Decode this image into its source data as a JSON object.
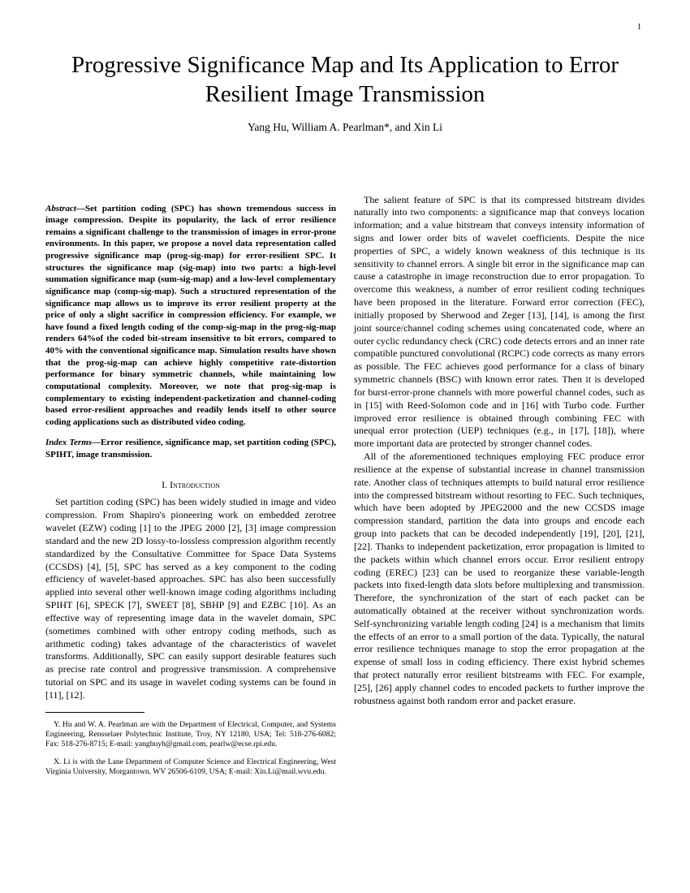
{
  "page_number": "1",
  "title": "Progressive Significance Map and Its Application to Error Resilient Image Transmission",
  "authors": "Yang Hu, William A. Pearlman*, and Xin Li",
  "abstract_lead": "Abstract—",
  "abstract_body": "Set partition coding (SPC) has shown tremendous success in image compression. Despite its popularity, the lack of error resilience remains a significant challenge to the transmission of images in error-prone environments. In this paper, we propose a novel data representation called progressive significance map (prog-sig-map) for error-resilient SPC. It structures the significance map (sig-map) into two parts: a high-level summation significance map (sum-sig-map) and a low-level complementary significance map (comp-sig-map). Such a structured representation of the significance map allows us to improve its error resilient property at the price of only a slight sacrifice in compression efficiency. For example, we have found a fixed length coding of the comp-sig-map in the prog-sig-map renders 64%of the coded bit-stream insensitive to bit errors, compared to 40% with the conventional significance map. Simulation results have shown that the prog-sig-map can achieve highly competitive rate-distortion performance for binary symmetric channels, while maintaining low computational complexity. Moreover, we note that prog-sig-map is complementary to existing independent-packetization and channel-coding based error-resilient approaches and readily lends itself to other source coding applications such as distributed video coding.",
  "index_lead": "Index Terms—",
  "index_body": "Error resilience, significance map, set partition coding (SPC), SPIHT, image transmission.",
  "section1": "I.  Introduction",
  "intro_para": "Set partition coding (SPC) has been widely studied in image and video compression. From Shapiro's pioneering work on embedded zerotree wavelet (EZW) coding [1] to the JPEG 2000 [2], [3] image compression standard and the new 2D lossy-to-lossless compression algorithm recently standardized by the Consultative Committee for Space Data Systems (CCSDS) [4], [5], SPC has served as a key component to the coding efficiency of wavelet-based approaches. SPC has also been successfully applied into several other well-known image coding algorithms including SPIHT [6], SPECK [7], SWEET [8], SBHP [9] and EZBC [10]. As an effective way of representing image data in the wavelet domain, SPC (sometimes combined with other entropy coding methods, such as arithmetic coding) takes advantage of the characteristics of wavelet transforms. Additionally, SPC can easily support desirable features such as precise rate control and progressive transmission. A comprehensive tutorial on SPC and its usage in wavelet coding systems can be found in [11], [12].",
  "footnote1": "Y. Hu and W. A. Pearlman are with the Department of Electrical, Computer, and Systems Engineering, Rensselaer Polytechnic Institute, Troy, NY 12180, USA; Tel: 518-276-6082; Fax: 518-276-8715; E-mail: yanghuyh@gmail.com, pearlw@ecse.rpi.edu.",
  "footnote2": "X. Li is with the Lane Department of Computer Science and Electrical Engineering, West Virginia University, Morgantown, WV 26506-6109, USA; E-mail: Xin.Li@mail.wvu.edu.",
  "col2_para1": "The salient feature of SPC is that its compressed bitstream divides naturally into two components: a significance map that conveys location information; and a value bitstream that conveys intensity information of signs and lower order bits of wavelet coefficients. Despite the nice properties of SPC, a widely known weakness of this technique is its sensitivity to channel errors. A single bit error in the significance map can cause a catastrophe in image reconstruction due to error propagation. To overcome this weakness, a number of error resilient coding techniques have been proposed in the literature. Forward error correction (FEC), initially proposed by Sherwood and Zeger [13], [14], is among the first joint source/channel coding schemes using concatenated code, where an outer cyclic redundancy check (CRC) code detects errors and an inner rate compatible punctured convolutional (RCPC) code corrects as many errors as possible. The FEC achieves good performance for a class of binary symmetric channels (BSC) with known error rates. Then it is developed for burst-error-prone channels with more powerful channel codes, such as in [15] with Reed-Solomon code and in [16] with Turbo code. Further improved error resilience is obtained through combining FEC with unequal error protection (UEP) techniques (e.g., in [17], [18]), where more important data are protected by stronger channel codes.",
  "col2_para2": "All of the aforementioned techniques employing FEC produce error resilience at the expense of substantial increase in channel transmission rate. Another class of techniques attempts to build natural error resilience into the compressed bitstream without resorting to FEC. Such techniques, which have been adopted by JPEG2000 and the new CCSDS image compression standard, partition the data into groups and encode each group into packets that can be decoded independently [19], [20], [21], [22]. Thanks to independent packetization, error propagation is limited to the packets within which channel errors occur. Error resilient entropy coding (EREC) [23] can be used to reorganize these variable-length packets into fixed-length data slots before multiplexing and transmission. Therefore, the synchronization of the start of each packet can be automatically obtained at the receiver without synchronization words. Self-synchronizing variable length coding [24] is a mechanism that limits the effects of an error to a small portion of the data. Typically, the natural error resilience techniques manage to stop the error propagation at the expense of small loss in coding efficiency. There exist hybrid schemes that protect naturally error resilient bitstreams with FEC. For example, [25], [26] apply channel codes to encoded packets to further improve the robustness against both random error and packet erasure."
}
